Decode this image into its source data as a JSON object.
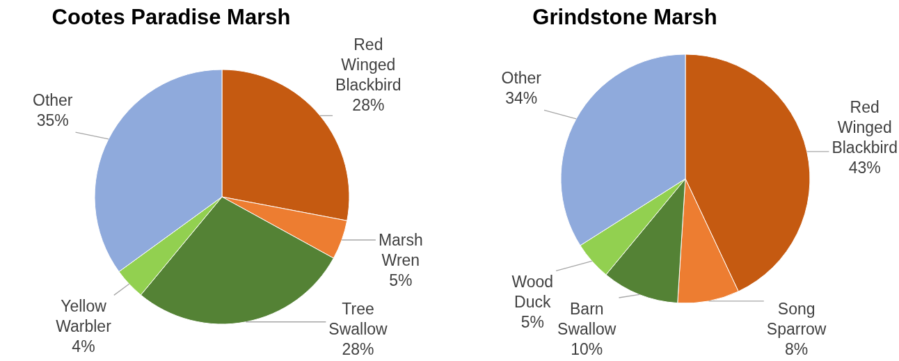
{
  "chart_data": [
    {
      "type": "pie",
      "title": "Cootes Paradise Marsh",
      "categories": [
        "Red Winged Blackbird",
        "Marsh Wren",
        "Tree Swallow",
        "Yellow Warbler",
        "Other"
      ],
      "values": [
        28,
        5,
        28,
        4,
        35
      ],
      "colors": [
        "#c55a11",
        "#ed7d31",
        "#548235",
        "#92d050",
        "#8faadc"
      ],
      "value_labels": [
        "28%",
        "5%",
        "28%",
        "4%",
        "35%"
      ]
    },
    {
      "type": "pie",
      "title": "Grindstone Marsh",
      "categories": [
        "Red Winged Blackbird",
        "Song Sparrow",
        "Barn Swallow",
        "Wood Duck",
        "Other"
      ],
      "values": [
        43,
        8,
        10,
        5,
        34
      ],
      "colors": [
        "#c55a11",
        "#ed7d31",
        "#548235",
        "#92d050",
        "#8faadc"
      ],
      "value_labels": [
        "43%",
        "8%",
        "10%",
        "5%",
        "34%"
      ]
    }
  ]
}
